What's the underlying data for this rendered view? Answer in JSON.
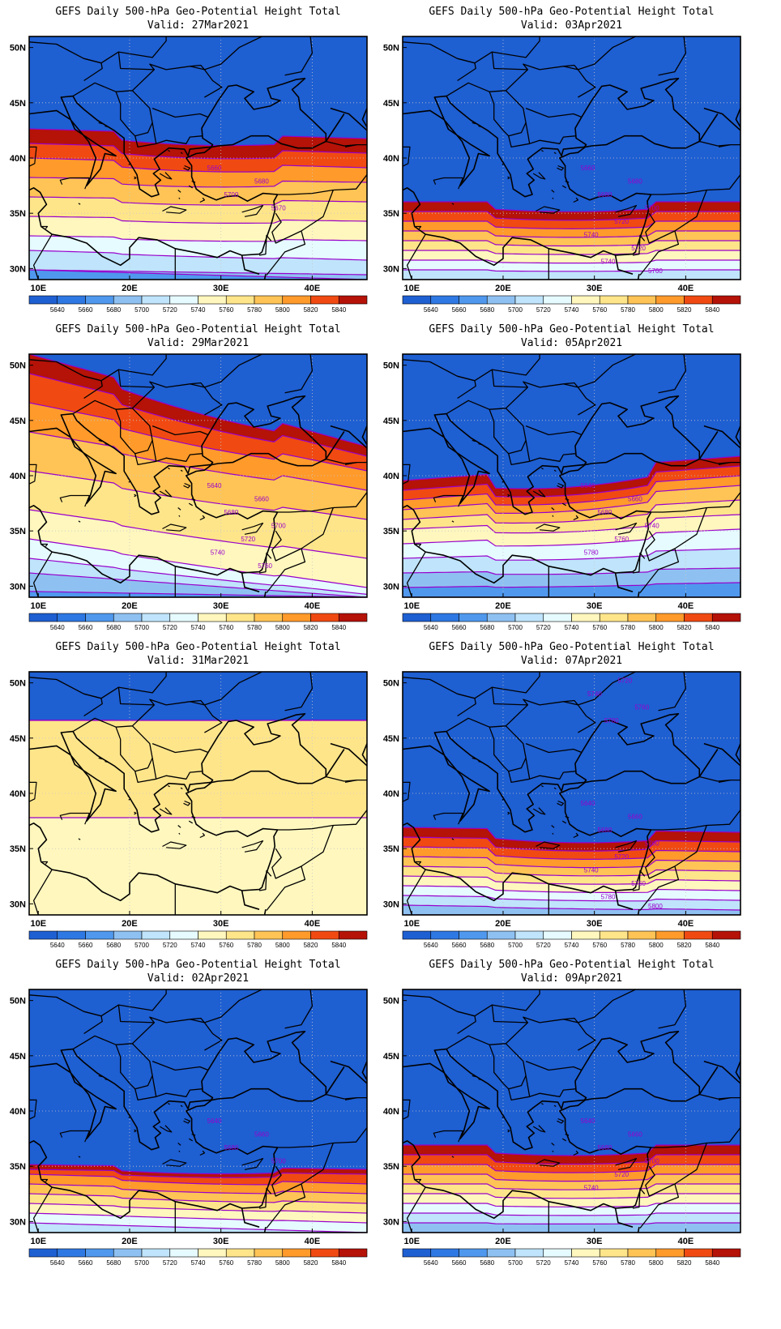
{
  "figure": {
    "title_line": "GEFS Daily 500-hPa Geo-Potential Height Total",
    "lat_ticks": [
      "50N",
      "45N",
      "40N",
      "35N",
      "30N"
    ],
    "lon_ticks": [
      "10E",
      "20E",
      "30E",
      "40E"
    ],
    "colorbar": {
      "levels": [
        "5640",
        "5660",
        "5680",
        "5700",
        "5720",
        "5740",
        "5760",
        "5780",
        "5800",
        "5820",
        "5840"
      ],
      "colors": [
        "#1e5fd2",
        "#2e78e3",
        "#4f98ee",
        "#8ec1f2",
        "#bfe4fb",
        "#e6fbff",
        "#fff7be",
        "#ffe58a",
        "#ffc455",
        "#ff9a2b",
        "#f04a12",
        "#b51208"
      ]
    },
    "contour_color": "#9900cc",
    "panels": [
      {
        "valid": "Valid: 27Mar2021",
        "contour_labels": [
          "5660",
          "5680",
          "5700",
          "5670"
        ],
        "bands": [
          {
            "v": 10,
            "a": 1,
            "b": 0,
            "c": 0,
            "d": 0
          },
          {
            "v": 9,
            "a": 1,
            "b": 0.5,
            "c": 0,
            "d": 0
          },
          {
            "v": 8,
            "a": 3,
            "b": 2,
            "c": 0.5,
            "d": 0.5
          },
          {
            "v": 7,
            "a": 4.5,
            "b": 4,
            "c": 1,
            "d": 0.8
          },
          {
            "v": 6,
            "a": 6.5,
            "b": 6,
            "c": 1.5,
            "d": 1.3
          },
          {
            "v": 5,
            "a": 8.5,
            "b": 8,
            "c": 2,
            "d": 1.8
          },
          {
            "v": 4,
            "a": 10.5,
            "b": 10,
            "c": 2.5,
            "d": 2.3
          },
          {
            "v": 3,
            "a": 12.5,
            "b": 11.5,
            "c": 3,
            "d": 2.8
          },
          {
            "v": 2,
            "a": 14,
            "b": 13,
            "c": 3.5,
            "d": 3.3
          },
          {
            "v": 1,
            "a": 15.5,
            "b": 14.5,
            "c": 4,
            "d": 3.8
          }
        ]
      },
      {
        "valid": "Valid: 29Mar2021",
        "contour_labels": [
          "5640",
          "5660",
          "5680",
          "5700",
          "5720",
          "5740",
          "5760"
        ],
        "bands": [
          {
            "v": 11,
            "a": 0,
            "b": 0,
            "c": 0,
            "d": 0
          },
          {
            "v": 10,
            "a": 0.6,
            "b": 0,
            "c": 0,
            "d": 0
          },
          {
            "v": 9,
            "a": 2.5,
            "b": 0,
            "c": 0,
            "d": 0
          },
          {
            "v": 8,
            "a": 4,
            "b": 0.3,
            "c": 0.5,
            "d": 0.3
          },
          {
            "v": 7,
            "a": 6,
            "b": 1,
            "c": 1,
            "d": 0.6
          },
          {
            "v": 6,
            "a": 9,
            "b": 4,
            "c": 1.5,
            "d": 1
          },
          {
            "v": 5,
            "a": 13,
            "b": 8,
            "c": 2.2,
            "d": 1.6
          },
          {
            "v": 4,
            "a": 17,
            "b": 11,
            "c": 3,
            "d": 2.2
          },
          {
            "v": 3,
            "a": 20,
            "b": 13,
            "c": 3.6,
            "d": 2.8
          },
          {
            "v": 2,
            "a": 23,
            "b": 14.5,
            "c": 4.2,
            "d": 3.4
          },
          {
            "v": 1,
            "a": 25,
            "b": 15.5,
            "c": 4.8,
            "d": 4
          }
        ]
      },
      {
        "valid": "Valid: 31Mar2021",
        "contour_labels": [],
        "bands": [
          {
            "v": 6,
            "a": 10,
            "b": 10,
            "c": 0,
            "d": 0
          },
          {
            "v": 5,
            "a": 20,
            "b": 20,
            "c": 0,
            "d": 0
          },
          {
            "v": 4,
            "a": 20,
            "b": 20,
            "c": 0.5,
            "d": 0.2
          },
          {
            "v": 3,
            "a": 20,
            "b": 20,
            "c": 1.2,
            "d": 0.5
          },
          {
            "v": 2,
            "a": 20,
            "b": 20,
            "c": 2,
            "d": 1
          },
          {
            "v": 1,
            "a": 20,
            "b": 20,
            "c": 3,
            "d": 1.6
          }
        ]
      },
      {
        "valid": "Valid: 02Apr2021",
        "contour_labels": [
          "5640",
          "5660",
          "5680",
          "5700"
        ],
        "bands": [
          {
            "v": 8,
            "a": 1,
            "b": 0,
            "c": 0,
            "d": 0
          },
          {
            "v": 7,
            "a": 2,
            "b": 1,
            "c": 0.3,
            "d": 0
          },
          {
            "v": 6,
            "a": 3,
            "b": 2,
            "c": 0.6,
            "d": 0.3
          },
          {
            "v": 5,
            "a": 4,
            "b": 3,
            "c": 1,
            "d": 0.6
          },
          {
            "v": 4,
            "a": 5,
            "b": 4,
            "c": 1.4,
            "d": 1
          },
          {
            "v": 3,
            "a": 6,
            "b": 5,
            "c": 1.8,
            "d": 1.3
          },
          {
            "v": 2,
            "a": 6.5,
            "b": 6,
            "c": 2.2,
            "d": 1.6
          },
          {
            "v": 1,
            "a": 7,
            "b": 6.5,
            "c": 2.6,
            "d": 2
          }
        ]
      },
      {
        "valid": "Valid: 03Apr2021",
        "contour_labels": [
          "5660",
          "5680",
          "5680",
          "5700",
          "5720",
          "5740",
          "5720",
          "5740",
          "5760"
        ],
        "bands": [
          {
            "v": 9,
            "a": 0,
            "b": 0,
            "c": 0,
            "d": 0
          },
          {
            "v": 8,
            "a": 1,
            "b": 1,
            "c": 0.5,
            "d": 0.5
          },
          {
            "v": 7,
            "a": 2,
            "b": 2,
            "c": 1,
            "d": 1
          },
          {
            "v": 6,
            "a": 3,
            "b": 3,
            "c": 1.4,
            "d": 1.4
          },
          {
            "v": 5,
            "a": 4,
            "b": 4,
            "c": 1.8,
            "d": 1.8
          },
          {
            "v": 4,
            "a": 5,
            "b": 5,
            "c": 2.2,
            "d": 2.2
          },
          {
            "v": 3,
            "a": 6,
            "b": 6,
            "c": 2.6,
            "d": 2.6
          },
          {
            "v": 2,
            "a": 7,
            "b": 7,
            "c": 3,
            "d": 3
          },
          {
            "v": 1,
            "a": 8,
            "b": 8,
            "c": 3.4,
            "d": 3.4
          }
        ]
      },
      {
        "valid": "Valid: 05Apr2021",
        "contour_labels": [
          "5640",
          "5660",
          "5680",
          "5740",
          "5760",
          "5780"
        ],
        "bands": [
          {
            "v": 11,
            "a": 0,
            "b": 0,
            "c": 0,
            "d": 0
          },
          {
            "v": 10,
            "a": 1,
            "b": 1.5,
            "c": 0.5,
            "d": 0.5
          },
          {
            "v": 9,
            "a": 2.5,
            "b": 3,
            "c": 1.2,
            "d": 1.2
          },
          {
            "v": 8,
            "a": 4,
            "b": 5,
            "c": 2,
            "d": 2
          },
          {
            "v": 7,
            "a": 5.5,
            "b": 7,
            "c": 2.8,
            "d": 2.8
          },
          {
            "v": 6,
            "a": 7,
            "b": 8.5,
            "c": 3.4,
            "d": 3.4
          },
          {
            "v": 5,
            "a": 8,
            "b": 10,
            "c": 4,
            "d": 4
          },
          {
            "v": 4,
            "a": 9,
            "b": 11.5,
            "c": 4.6,
            "d": 4.6
          },
          {
            "v": 3,
            "a": 10,
            "b": 12.5,
            "c": 5.2,
            "d": 5.2
          },
          {
            "v": 2,
            "a": 11,
            "b": 13.5,
            "c": 5.8,
            "d": 5.8
          },
          {
            "v": 1,
            "a": 12,
            "b": 14.5,
            "c": 6.4,
            "d": 6.4
          }
        ]
      },
      {
        "valid": "Valid: 07Apr2021",
        "contour_labels": [
          "5640",
          "5660",
          "5680",
          "5700",
          "5720",
          "5740",
          "5760",
          "5780",
          "5800",
          "5720",
          "5740",
          "5760",
          "5780"
        ],
        "bands": [
          {
            "v": 10,
            "a": 0,
            "b": 0,
            "c": 0,
            "d": 0
          },
          {
            "v": 9,
            "a": 1,
            "b": 0.5,
            "c": 0.5,
            "d": 0.3
          },
          {
            "v": 8,
            "a": 2,
            "b": 1.5,
            "c": 1,
            "d": 0.8
          },
          {
            "v": 7,
            "a": 3,
            "b": 2.5,
            "c": 1.5,
            "d": 1.3
          },
          {
            "v": 6,
            "a": 4,
            "b": 3.5,
            "c": 2,
            "d": 1.8
          },
          {
            "v": 5,
            "a": 5,
            "b": 4.5,
            "c": 2.5,
            "d": 2.3
          },
          {
            "v": 4,
            "a": 6,
            "b": 5.5,
            "c": 3,
            "d": 2.8
          },
          {
            "v": 3,
            "a": 7,
            "b": 6.5,
            "c": 3.5,
            "d": 3.3
          },
          {
            "v": 2,
            "a": 8,
            "b": 7.5,
            "c": 4,
            "d": 3.8
          },
          {
            "v": 1,
            "a": 9,
            "b": 8.5,
            "c": 4.5,
            "d": 4.3
          }
        ]
      },
      {
        "valid": "Valid: 09Apr2021",
        "contour_labels": [
          "5640",
          "5660",
          "5680",
          "5700",
          "5720",
          "5740"
        ],
        "bands": [
          {
            "v": 10,
            "a": 0,
            "b": 0,
            "c": 0,
            "d": 0
          },
          {
            "v": 9,
            "a": 1,
            "b": 1,
            "c": 0.4,
            "d": 0.4
          },
          {
            "v": 8,
            "a": 2,
            "b": 2,
            "c": 0.8,
            "d": 0.8
          },
          {
            "v": 7,
            "a": 3,
            "b": 3,
            "c": 1.2,
            "d": 1.2
          },
          {
            "v": 6,
            "a": 4,
            "b": 4,
            "c": 1.6,
            "d": 1.6
          },
          {
            "v": 5,
            "a": 5,
            "b": 5,
            "c": 2,
            "d": 2
          },
          {
            "v": 4,
            "a": 6,
            "b": 6,
            "c": 2.4,
            "d": 2.4
          },
          {
            "v": 3,
            "a": 7,
            "b": 7,
            "c": 2.8,
            "d": 2.8
          },
          {
            "v": 2,
            "a": 8,
            "b": 8,
            "c": 3.2,
            "d": 3.2
          },
          {
            "v": 1,
            "a": 9,
            "b": 9,
            "c": 3.6,
            "d": 3.6
          }
        ]
      }
    ]
  }
}
